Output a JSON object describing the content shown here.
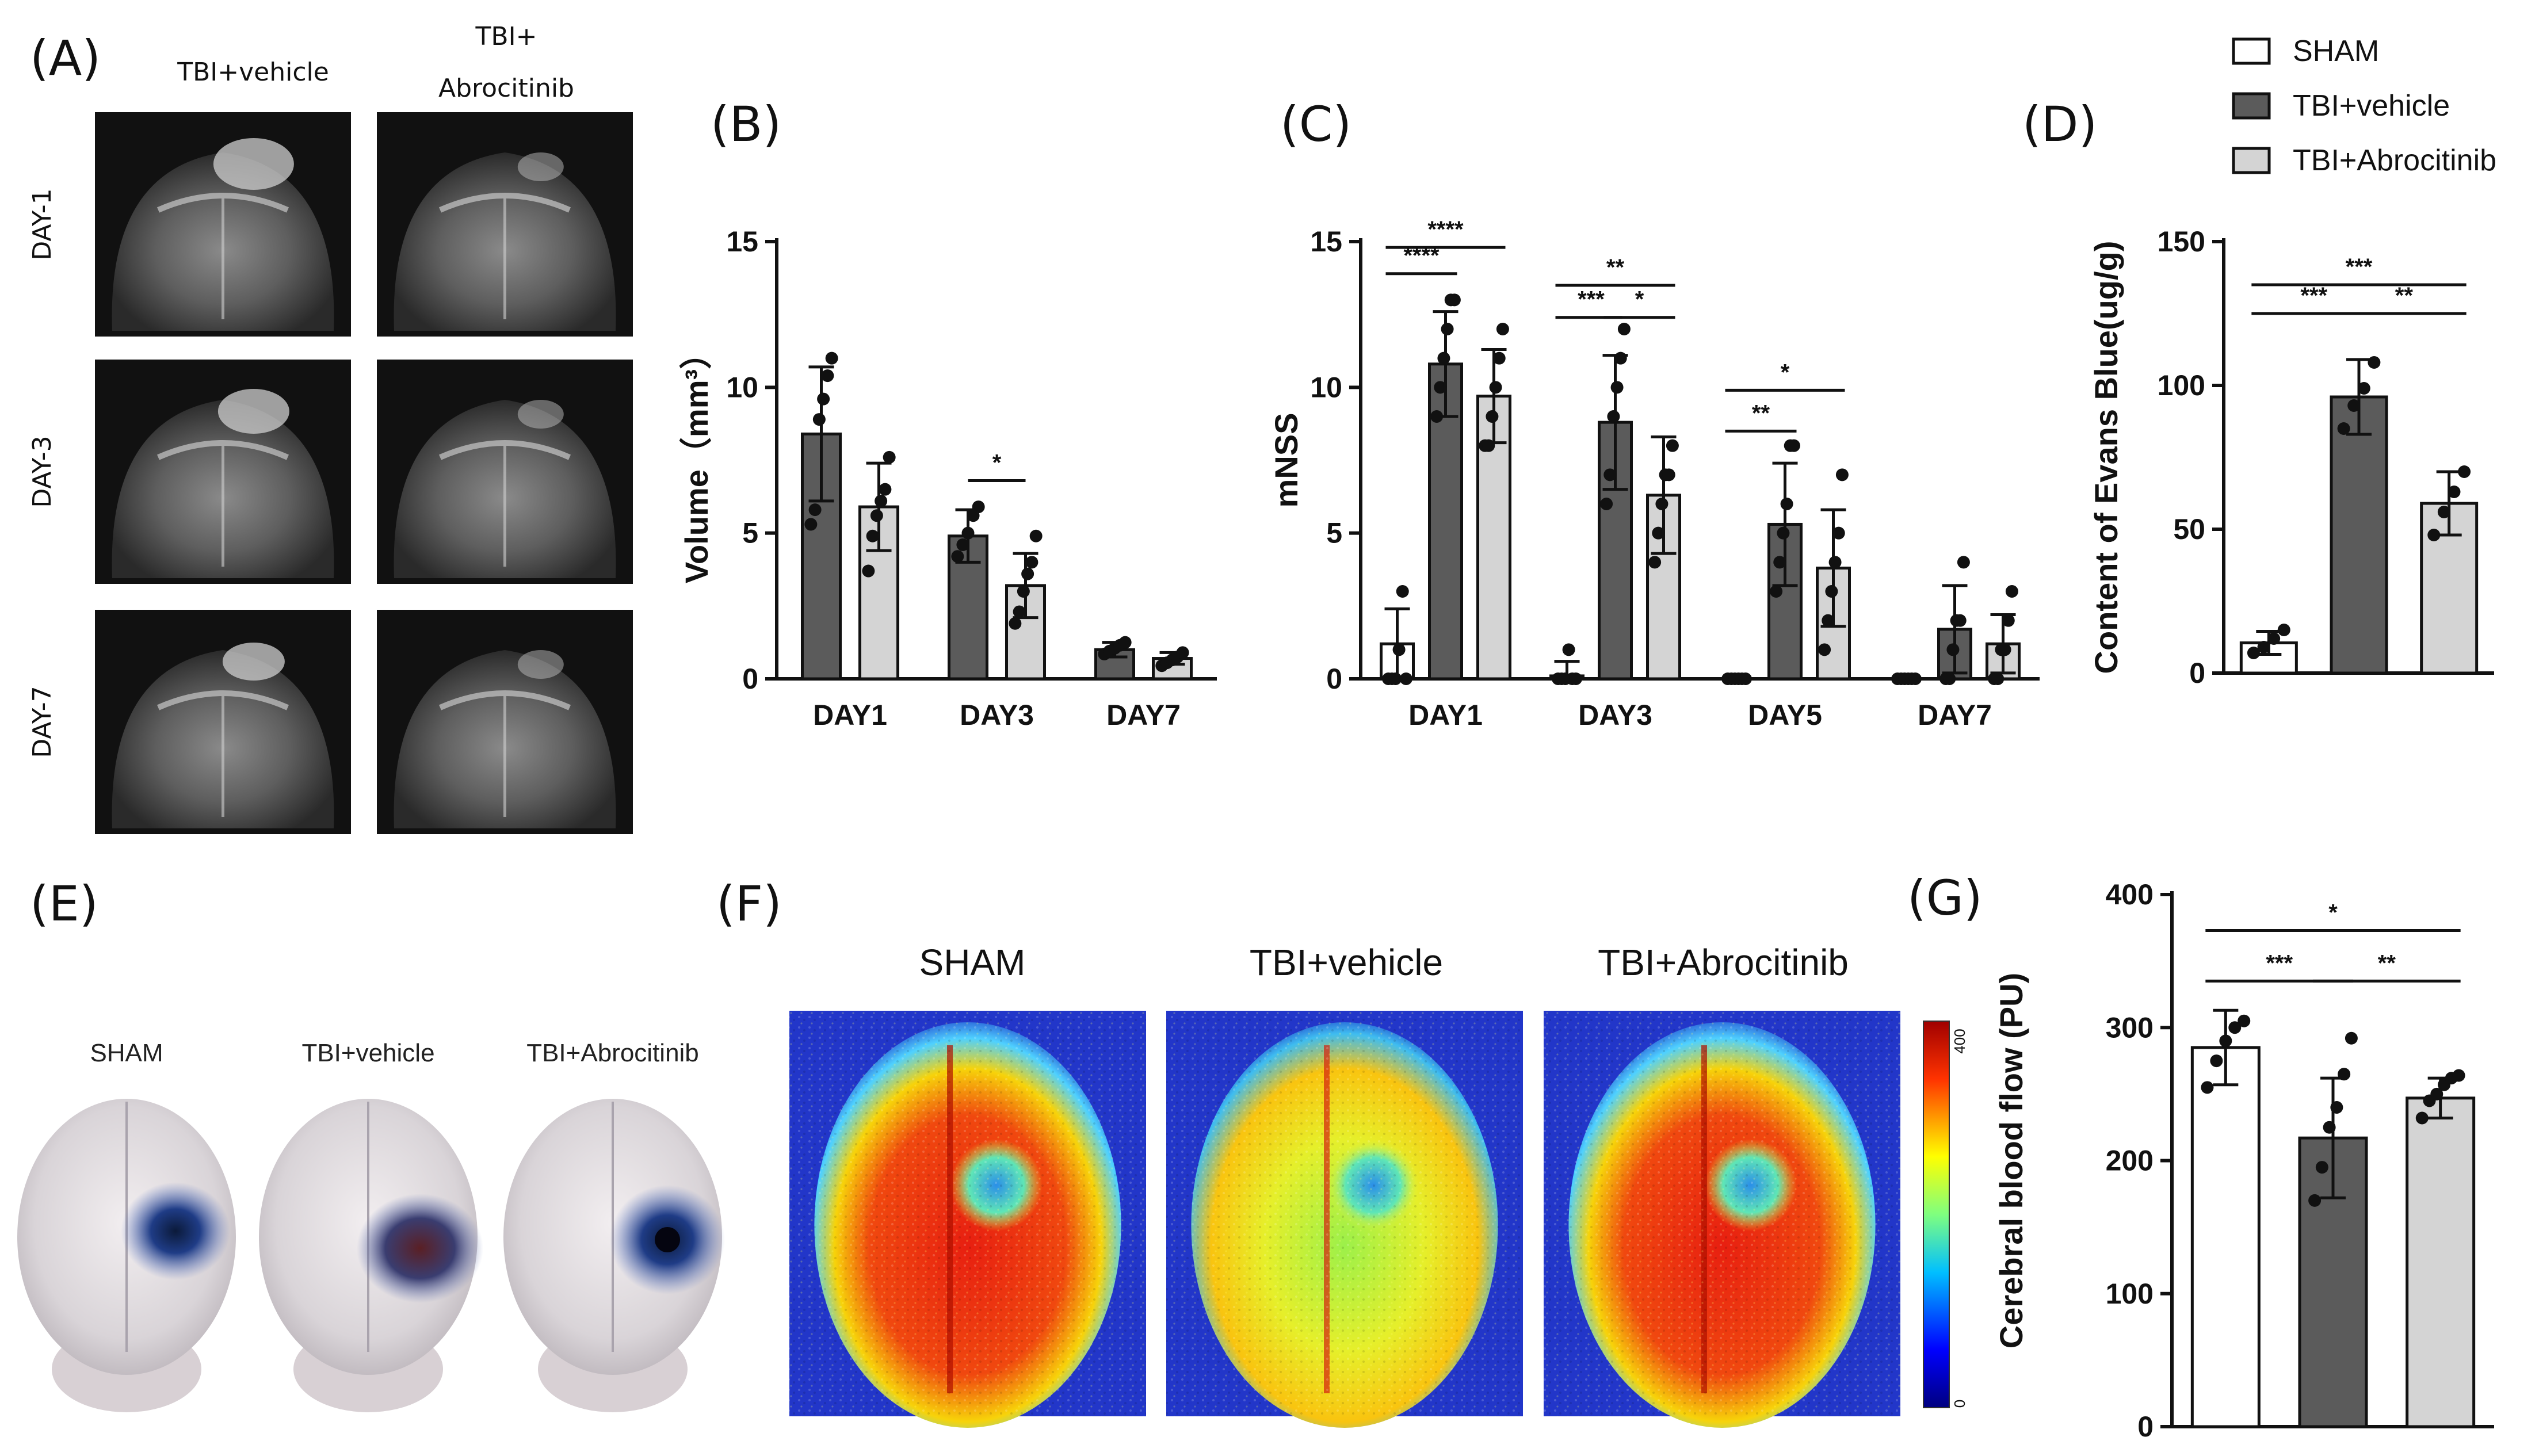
{
  "colors": {
    "sham": "#ffffff",
    "vehicle": "#5b5b5b",
    "abrocitinib": "#d4d4d4",
    "ink": "#111111"
  },
  "legend": [
    {
      "name": "SHAM",
      "color": "#ffffff"
    },
    {
      "name": "TBI+vehicle",
      "color": "#5b5b5b"
    },
    {
      "name": "TBI+Abrocitinib",
      "color": "#d4d4d4"
    }
  ],
  "panelA": {
    "label": "(A)",
    "columns": [
      "TBI+vehicle",
      "TBI+\nAbrocitinib"
    ],
    "rows": [
      "DAY-1",
      "DAY-3",
      "DAY-7"
    ]
  },
  "panelE": {
    "label": "(E)",
    "titles": [
      "SHAM",
      "TBI+vehicle",
      "TBI+Abrocitinib"
    ]
  },
  "panelF": {
    "label": "(F)",
    "titles": [
      "SHAM",
      "TBI+vehicle",
      "TBI+Abrocitinib"
    ],
    "colorbar": {
      "min": "0",
      "max": "400"
    }
  },
  "chart_data": [
    {
      "panel": "(B)",
      "type": "bar",
      "ylabel": "Volume（mm³）",
      "ylim": [
        0,
        15
      ],
      "yticks": [
        0,
        5,
        10,
        15
      ],
      "categories": [
        "DAY1",
        "DAY3",
        "DAY7"
      ],
      "series": [
        {
          "name": "TBI+vehicle",
          "values": [
            8.4,
            4.9,
            1.0
          ],
          "errors": [
            2.3,
            0.9,
            0.25
          ],
          "points": [
            [
              5.3,
              5.8,
              8.9,
              9.6,
              10.4,
              11.0
            ],
            [
              4.2,
              4.6,
              5.0,
              5.6,
              5.9
            ],
            [
              0.85,
              0.95,
              1.05,
              1.15,
              1.25
            ]
          ]
        },
        {
          "name": "TBI+Abrocitinib",
          "values": [
            5.9,
            3.2,
            0.7
          ],
          "errors": [
            1.5,
            1.1,
            0.2
          ],
          "points": [
            [
              3.7,
              4.9,
              5.6,
              6.1,
              6.5,
              7.6
            ],
            [
              1.9,
              2.3,
              3.0,
              3.6,
              4.0,
              4.9
            ],
            [
              0.45,
              0.55,
              0.65,
              0.75,
              0.9
            ]
          ]
        }
      ],
      "significance": [
        {
          "category": "DAY3",
          "label": "*"
        }
      ]
    },
    {
      "panel": "(C)",
      "type": "bar",
      "ylabel": "mNSS",
      "ylim": [
        0,
        15
      ],
      "yticks": [
        0,
        5,
        10,
        15
      ],
      "categories": [
        "DAY1",
        "DAY3",
        "DAY5",
        "DAY7"
      ],
      "series": [
        {
          "name": "SHAM",
          "values": [
            1.2,
            0.1,
            0.0,
            0.0
          ],
          "errors": [
            1.2,
            0.5,
            0.0,
            0.0
          ],
          "points": [
            [
              0,
              0,
              0,
              1,
              3,
              0
            ],
            [
              0,
              0,
              0,
              1,
              0,
              0
            ],
            [
              0,
              0,
              0,
              0,
              0,
              0
            ],
            [
              0,
              0,
              0,
              0,
              0,
              0
            ]
          ]
        },
        {
          "name": "TBI+vehicle",
          "values": [
            10.8,
            8.8,
            5.3,
            1.7
          ],
          "errors": [
            1.8,
            2.3,
            2.1,
            1.5
          ],
          "points": [
            [
              9,
              10,
              11,
              12,
              13,
              13
            ],
            [
              6,
              7,
              9,
              10,
              11,
              12
            ],
            [
              3,
              4,
              5,
              6,
              8,
              8
            ],
            [
              0,
              0,
              1,
              2,
              2,
              4
            ]
          ]
        },
        {
          "name": "TBI+Abrocitinib",
          "values": [
            9.7,
            6.3,
            3.8,
            1.2
          ],
          "errors": [
            1.6,
            2.0,
            2.0,
            1.0
          ],
          "points": [
            [
              8,
              8,
              9,
              10,
              11,
              12
            ],
            [
              4,
              5,
              6,
              7,
              7,
              8
            ],
            [
              1,
              2,
              3,
              4,
              5,
              7
            ],
            [
              0,
              0,
              1,
              1,
              2,
              3
            ]
          ]
        }
      ],
      "significance": [
        {
          "category": "DAY1",
          "pair": "SHAM-TBI+vehicle",
          "label": "****"
        },
        {
          "category": "DAY1",
          "pair": "SHAM-TBI+Abrocitinib",
          "label": "****"
        },
        {
          "category": "DAY3",
          "pair": "SHAM-TBI+vehicle",
          "label": "***"
        },
        {
          "category": "DAY3",
          "pair": "TBI+vehicle-TBI+Abrocitinib",
          "label": "*"
        },
        {
          "category": "DAY3",
          "pair": "SHAM-TBI+Abrocitinib",
          "label": "**"
        },
        {
          "category": "DAY5",
          "pair": "SHAM-TBI+vehicle",
          "label": "**"
        },
        {
          "category": "DAY5",
          "pair": "SHAM-TBI+Abrocitinib",
          "label": "*"
        }
      ]
    },
    {
      "panel": "(D)",
      "type": "bar",
      "ylabel": "Content of Evans Blue(ug/g)",
      "ylim": [
        0,
        150
      ],
      "yticks": [
        0,
        50,
        100,
        150
      ],
      "categories": [
        "SHAM",
        "TBI+vehicle",
        "TBI+Abrocitinib"
      ],
      "values": [
        10.5,
        96,
        59
      ],
      "errors": [
        4,
        13,
        11
      ],
      "points": [
        [
          7,
          9,
          12,
          15
        ],
        [
          85,
          93,
          99,
          108
        ],
        [
          48,
          56,
          63,
          70
        ]
      ],
      "significance": [
        {
          "pair": "SHAM-TBI+vehicle",
          "label": "***"
        },
        {
          "pair": "TBI+vehicle-TBI+Abrocitinib",
          "label": "**"
        },
        {
          "pair": "SHAM-TBI+Abrocitinib",
          "label": "***"
        }
      ]
    },
    {
      "panel": "(G)",
      "type": "bar",
      "ylabel": "Cerebral blood flow (PU)",
      "ylim": [
        0,
        400
      ],
      "yticks": [
        0,
        100,
        200,
        300,
        400
      ],
      "categories": [
        "SHAM",
        "TBI+vehicle",
        "TBI+Abrocitinib"
      ],
      "values": [
        285,
        217,
        247
      ],
      "errors": [
        28,
        45,
        15
      ],
      "points": [
        [
          255,
          275,
          290,
          300,
          305
        ],
        [
          170,
          195,
          225,
          240,
          265,
          292
        ],
        [
          232,
          245,
          250,
          257,
          262,
          264
        ]
      ],
      "significance": [
        {
          "pair": "SHAM-TBI+vehicle",
          "label": "***"
        },
        {
          "pair": "TBI+vehicle-TBI+Abrocitinib",
          "label": "**"
        },
        {
          "pair": "SHAM-TBI+Abrocitinib",
          "label": "*"
        }
      ]
    }
  ]
}
